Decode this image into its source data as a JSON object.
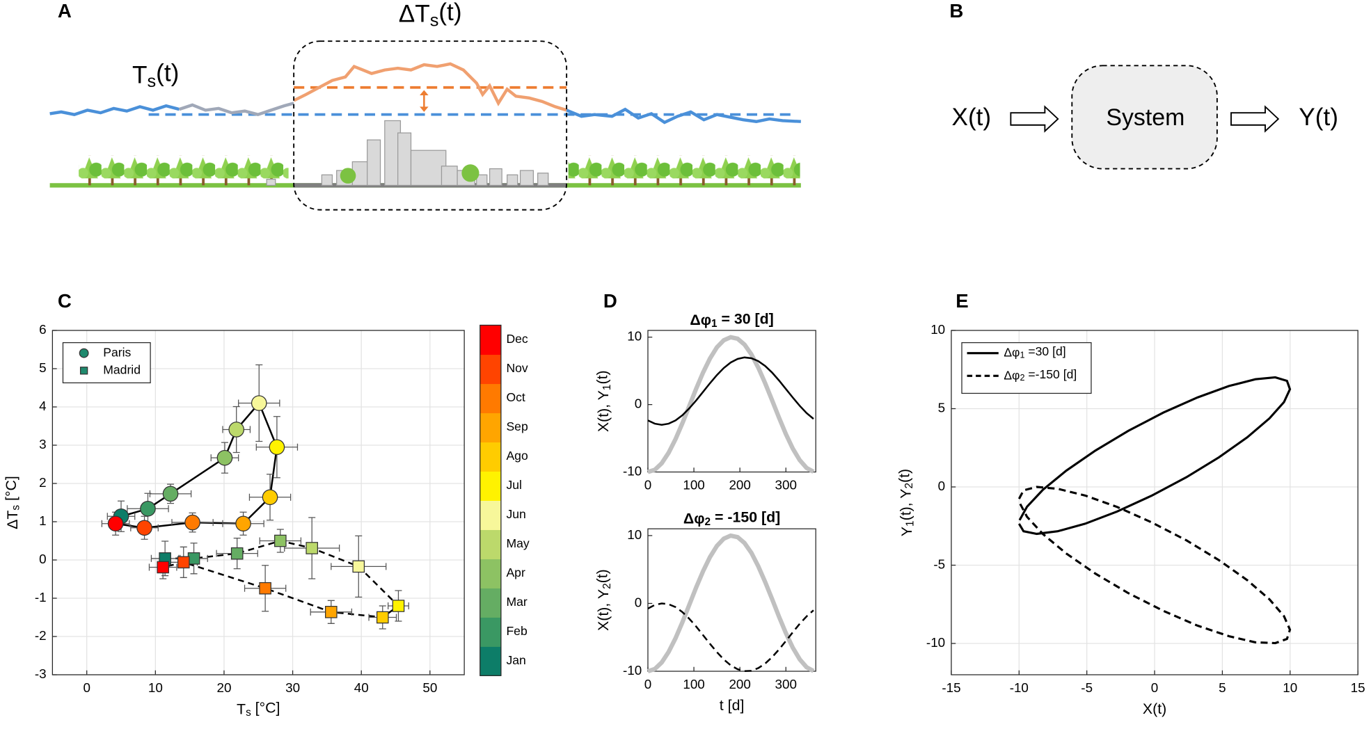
{
  "diagram": {
    "A": {
      "label": "A",
      "delta": [
        "ΔT",
        "s",
        "(t)"
      ],
      "ts": [
        "T",
        "s",
        "(t)"
      ]
    },
    "B": {
      "label": "B",
      "input": "X(t)",
      "system": "System",
      "output": "Y(t)"
    }
  },
  "chart_data": [
    {
      "type": "scatter",
      "panel": "C",
      "xlabel": [
        "T",
        "s",
        " [°C]"
      ],
      "ylabel": [
        "ΔT",
        "s",
        " [°C]"
      ],
      "xlim": [
        -5,
        55
      ],
      "ylim": [
        -3,
        6
      ],
      "xticks": [
        0,
        10,
        20,
        30,
        40,
        50
      ],
      "yticks": [
        -3,
        -2,
        -1,
        0,
        1,
        2,
        3,
        4,
        5,
        6
      ],
      "grid": true,
      "legend": "upper left",
      "colorbar": {
        "categories": [
          "Jan",
          "Feb",
          "Mar",
          "Apr",
          "May",
          "Jun",
          "Jul",
          "Ago",
          "Sep",
          "Oct",
          "Nov",
          "Dec"
        ],
        "colors": [
          "#0d7d68",
          "#3a9863",
          "#65ad63",
          "#8dc263",
          "#bcd96b",
          "#f7f79a",
          "#fff200",
          "#ffcc00",
          "#ffa500",
          "#ff7a00",
          "#ff4400",
          "#ff0000"
        ]
      },
      "series": [
        {
          "name": "Paris",
          "marker": "circle",
          "dash": false,
          "color": "#1f8a6e",
          "x": [
            5.0,
            8.9,
            12.2,
            20.1,
            21.8,
            25.1,
            27.7,
            26.7,
            22.8,
            15.4,
            8.4,
            4.2
          ],
          "values": [
            1.14,
            1.34,
            1.73,
            2.67,
            3.41,
            4.1,
            2.95,
            1.64,
            0.95,
            0.98,
            0.84,
            0.95
          ],
          "xerr": [
            2,
            3,
            3,
            2,
            2,
            3,
            3,
            3,
            3,
            3,
            2,
            2
          ],
          "yerr": [
            0.4,
            0.4,
            0.25,
            0.4,
            0.6,
            1.0,
            0.8,
            0.6,
            0.3,
            0.25,
            0.3,
            0.3
          ]
        },
        {
          "name": "Madrid",
          "marker": "square",
          "dash": true,
          "color": "#1f8a6e",
          "x": [
            11.4,
            15.6,
            21.9,
            28.2,
            32.8,
            39.6,
            45.4,
            43.1,
            35.6,
            26.0,
            14.1,
            11.1
          ],
          "values": [
            0.04,
            0.04,
            0.17,
            0.5,
            0.31,
            -0.17,
            -1.2,
            -1.5,
            -1.36,
            -0.74,
            -0.06,
            -0.19
          ],
          "xerr": [
            2,
            2,
            3,
            3,
            4,
            4,
            1.5,
            2,
            3,
            3,
            2,
            2
          ],
          "yerr": [
            0.45,
            0.4,
            0.4,
            0.3,
            0.8,
            0.8,
            0.4,
            0.3,
            0.3,
            0.6,
            0.4,
            0.3
          ]
        }
      ]
    },
    {
      "type": "line",
      "panel": "D",
      "title": [
        "Δφ",
        "1",
        " = 30 [d]"
      ],
      "ylabel": [
        "X(t), Y",
        "1",
        "(t)"
      ],
      "xlim": [
        0,
        365
      ],
      "ylim": [
        -10,
        11
      ],
      "xticks": [
        0,
        100,
        200,
        300
      ],
      "yticks": [
        -10,
        0,
        10
      ],
      "grid": false,
      "x": [
        0,
        15,
        30,
        45,
        60,
        75,
        90,
        105,
        120,
        135,
        150,
        165,
        180,
        195,
        210,
        225,
        240,
        255,
        270,
        285,
        300,
        315,
        330,
        345,
        360
      ],
      "series": [
        {
          "color": "#c0c0c0",
          "linewidth": 5,
          "dash": false,
          "values": [
            -10,
            -9.67,
            -8.7,
            -7.15,
            -5.13,
            -2.76,
            -0.22,
            2.35,
            4.75,
            6.84,
            8.48,
            9.55,
            9.99,
            9.77,
            8.9,
            7.44,
            5.49,
            3.17,
            0.65,
            -1.93,
            -4.37,
            -6.52,
            -8.24,
            -9.41,
            -9.96
          ]
        },
        {
          "color": "#000000",
          "linewidth": 2,
          "dash": false,
          "values": [
            -2.35,
            -2.83,
            -3.0,
            -2.83,
            -2.35,
            -1.57,
            -0.56,
            0.62,
            1.89,
            3.17,
            4.38,
            5.42,
            6.24,
            6.78,
            7.0,
            6.88,
            6.45,
            5.72,
            4.75,
            3.59,
            2.32,
            1.04,
            -0.18,
            -1.26,
            -2.12
          ]
        }
      ]
    },
    {
      "type": "line",
      "title": [
        "Δφ",
        "2",
        " = -150 [d]"
      ],
      "ylabel": [
        "X(t), Y",
        "2",
        "(t)"
      ],
      "xlabel": "t [d]",
      "xlim": [
        0,
        365
      ],
      "ylim": [
        -10,
        11
      ],
      "xticks": [
        0,
        100,
        200,
        300
      ],
      "yticks": [
        -10,
        0,
        10
      ],
      "grid": false,
      "x": [
        0,
        15,
        30,
        45,
        60,
        75,
        90,
        105,
        120,
        135,
        150,
        165,
        180,
        195,
        210,
        225,
        240,
        255,
        270,
        285,
        300,
        315,
        330,
        345,
        360
      ],
      "series": [
        {
          "color": "#c0c0c0",
          "linewidth": 5,
          "dash": false,
          "values": [
            -10,
            -9.67,
            -8.7,
            -7.15,
            -5.13,
            -2.76,
            -0.22,
            2.35,
            4.75,
            6.84,
            8.48,
            9.55,
            9.99,
            9.77,
            8.9,
            7.44,
            5.49,
            3.17,
            0.65,
            -1.93,
            -4.37,
            -6.52,
            -8.24,
            -9.41,
            -9.96
          ]
        },
        {
          "color": "#000000",
          "linewidth": 2,
          "dash": true,
          "values": [
            -0.76,
            -0.22,
            0.0,
            -0.12,
            -0.55,
            -1.28,
            -2.26,
            -3.41,
            -4.68,
            -5.96,
            -7.18,
            -8.26,
            -9.12,
            -9.71,
            -9.98,
            -9.93,
            -9.54,
            -8.86,
            -7.92,
            -6.79,
            -5.54,
            -4.25,
            -3.01,
            -1.91,
            -1.01
          ]
        }
      ]
    },
    {
      "type": "line",
      "panel": "E",
      "xlabel": "X(t)",
      "ylabel": [
        "Y",
        "1",
        "(t), Y",
        "2",
        "(t)"
      ],
      "xlim": [
        -15,
        15
      ],
      "ylim": [
        -12,
        10
      ],
      "xticks": [
        -15,
        -10,
        -5,
        0,
        5,
        10,
        15
      ],
      "yticks": [
        -10,
        -5,
        0,
        5,
        10
      ],
      "grid": true,
      "legend": "upper left",
      "x": [
        -10,
        -9.67,
        -8.7,
        -7.15,
        -5.13,
        -2.76,
        -0.22,
        2.35,
        4.75,
        6.84,
        8.48,
        9.55,
        9.99,
        9.77,
        8.9,
        7.44,
        5.49,
        3.17,
        0.65,
        -1.93,
        -4.37,
        -6.52,
        -8.24,
        -9.41,
        -9.96
      ],
      "series": [
        {
          "name": [
            "Δφ",
            "1",
            " =30 [d]"
          ],
          "color": "#000000",
          "linewidth": 2.5,
          "dash": false,
          "values": [
            -2.35,
            -2.83,
            -3.0,
            -2.83,
            -2.35,
            -1.57,
            -0.56,
            0.62,
            1.89,
            3.17,
            4.38,
            5.42,
            6.24,
            6.78,
            7.0,
            6.88,
            6.45,
            5.72,
            4.75,
            3.59,
            2.32,
            1.04,
            -0.18,
            -1.26,
            -2.12
          ]
        },
        {
          "name": [
            "Δφ",
            "2",
            " =-150 [d]"
          ],
          "color": "#000000",
          "linewidth": 2.5,
          "dash": true,
          "values": [
            -0.76,
            -0.22,
            0.0,
            -0.12,
            -0.55,
            -1.28,
            -2.26,
            -3.41,
            -4.68,
            -5.96,
            -7.18,
            -8.26,
            -9.12,
            -9.71,
            -9.98,
            -9.93,
            -9.54,
            -8.86,
            -7.92,
            -6.79,
            -5.54,
            -4.25,
            -3.01,
            -1.91,
            -1.01
          ]
        }
      ]
    }
  ]
}
